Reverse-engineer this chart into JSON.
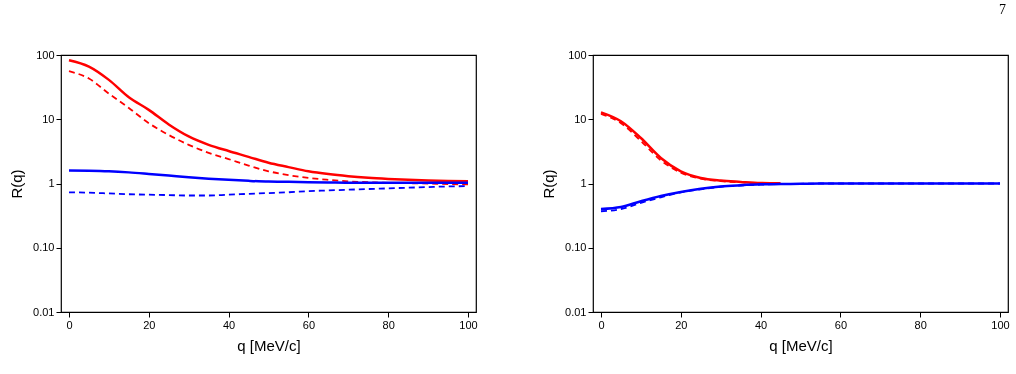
{
  "chart_data": [
    {
      "type": "line",
      "xlabel": "q [MeV/c]",
      "ylabel": "R(q)",
      "log": "y",
      "grid": false,
      "x": [
        0,
        5,
        10,
        15,
        20,
        25,
        30,
        35,
        40,
        45,
        50,
        55,
        60,
        65,
        70,
        75,
        80,
        85,
        90,
        95,
        100
      ],
      "xlim": [
        -2,
        102
      ],
      "xticks": [
        0,
        20,
        40,
        60,
        80,
        100
      ],
      "ylim": [
        0.01,
        100
      ],
      "yticks": [
        100,
        10,
        1,
        {
          "value": 0.1,
          "label": "0.10"
        },
        0.01
      ],
      "series": [
        {
          "color": "#ff0000",
          "line_style": "solid",
          "values": [
            83,
            66,
            41,
            22,
            14,
            8.3,
            5.4,
            4.0,
            3.2,
            2.6,
            2.1,
            1.8,
            1.55,
            1.4,
            1.3,
            1.23,
            1.18,
            1.14,
            1.11,
            1.09,
            1.08
          ]
        },
        {
          "color": "#ff0000",
          "line_style": "dashed",
          "values": [
            56,
            43,
            25,
            15,
            8.7,
            5.7,
            4.0,
            3.0,
            2.4,
            1.9,
            1.55,
            1.35,
            1.22,
            1.14,
            1.08,
            1.05,
            1.02,
            1.01,
            1.0,
            0.98,
            0.97
          ]
        },
        {
          "color": "#0000ff",
          "line_style": "solid",
          "values": [
            1.59,
            1.58,
            1.55,
            1.49,
            1.41,
            1.33,
            1.25,
            1.19,
            1.14,
            1.1,
            1.07,
            1.06,
            1.05,
            1.04,
            1.03,
            1.03,
            1.03,
            1.03,
            1.03,
            1.03,
            1.03
          ]
        },
        {
          "color": "#0000ff",
          "line_style": "dashed",
          "values": [
            0.73,
            0.72,
            0.7,
            0.68,
            0.67,
            0.66,
            0.65,
            0.65,
            0.67,
            0.69,
            0.71,
            0.73,
            0.76,
            0.78,
            0.8,
            0.82,
            0.84,
            0.86,
            0.88,
            0.9,
            0.91
          ]
        }
      ]
    },
    {
      "type": "line",
      "xlabel": "q [MeV/c]",
      "ylabel": "R(q)",
      "log": "y",
      "grid": false,
      "x": [
        0,
        5,
        10,
        15,
        20,
        25,
        30,
        35,
        40,
        45,
        50,
        55,
        60,
        65,
        70,
        75,
        80,
        85,
        90,
        95,
        100
      ],
      "xlim": [
        -2,
        102
      ],
      "xticks": [
        0,
        20,
        40,
        60,
        80,
        100
      ],
      "ylim": [
        0.01,
        100
      ],
      "yticks": [
        100,
        10,
        1,
        {
          "value": 0.1,
          "label": "0.10"
        },
        0.01
      ],
      "annotations": [
        "7"
      ],
      "series": [
        {
          "color": "#ff0000",
          "line_style": "solid",
          "values": [
            12.8,
            9.3,
            5.1,
            2.5,
            1.55,
            1.22,
            1.11,
            1.06,
            1.02,
            1.01,
            null,
            null,
            null,
            null,
            null,
            null,
            null,
            null,
            null,
            null,
            null
          ]
        },
        {
          "color": "#ff0000",
          "line_style": "dashed",
          "values": [
            12.1,
            8.7,
            4.6,
            2.3,
            1.48,
            1.19,
            1.09,
            1.04,
            1.01,
            null,
            null,
            null,
            null,
            null,
            null,
            null,
            null,
            null,
            null,
            null,
            null
          ]
        },
        {
          "color": "#0000ff",
          "line_style": "solid",
          "values": [
            0.4,
            0.43,
            0.53,
            0.64,
            0.74,
            0.83,
            0.9,
            0.94,
            0.97,
            0.98,
            0.99,
            1,
            1,
            1,
            1,
            1,
            1,
            1,
            1,
            1,
            1
          ]
        },
        {
          "color": "#0000ff",
          "line_style": "dashed",
          "values": [
            0.37,
            0.4,
            0.5,
            0.61,
            0.73,
            0.81,
            0.89,
            0.93,
            0.96,
            0.98,
            0.99,
            1,
            1,
            1,
            1,
            1,
            1,
            1,
            1,
            1,
            1
          ]
        }
      ]
    }
  ]
}
